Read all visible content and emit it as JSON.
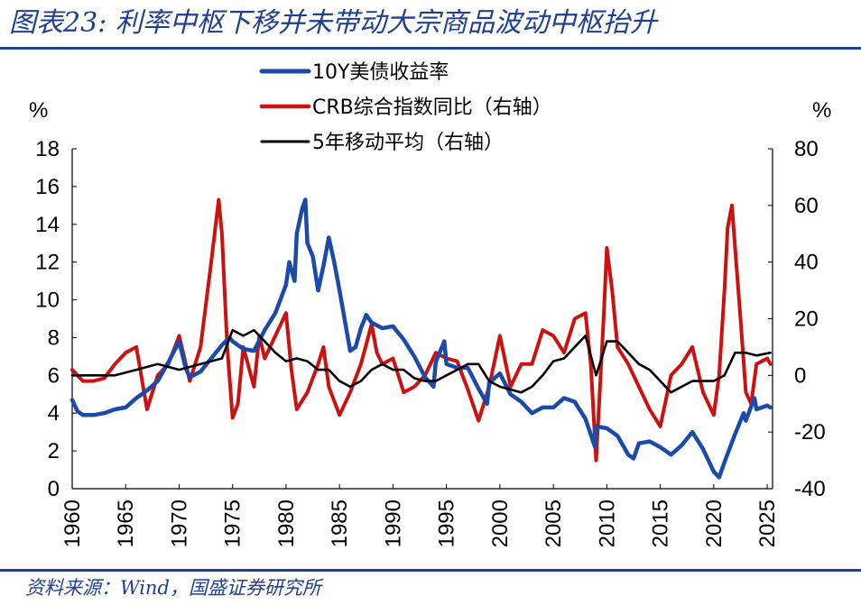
{
  "header": {
    "title": "图表23:  利率中枢下移并未带动大宗商品波动中枢抬升"
  },
  "footer": {
    "source": "资料来源：Wind，国盛证券研究所"
  },
  "colors": {
    "brand_blue": "#1f3f8f",
    "series_10y": "#1c4aa8",
    "series_crb": "#cc1111",
    "series_ma5": "#000000"
  },
  "chart_data": {
    "type": "line",
    "ylabel_left": "%",
    "ylabel_right": "%",
    "xlim": [
      1960,
      2025.5
    ],
    "ylim_left": [
      0,
      18
    ],
    "ylim_right": [
      -40,
      80
    ],
    "x_ticks": [
      "1960",
      "1965",
      "1970",
      "1975",
      "1980",
      "1985",
      "1990",
      "1995",
      "2000",
      "2005",
      "2010",
      "2015",
      "2020",
      "2025"
    ],
    "y_left_ticks": [
      "0",
      "2",
      "4",
      "6",
      "8",
      "10",
      "12",
      "14",
      "16",
      "18"
    ],
    "y_right_ticks": [
      "-40",
      "-20",
      "0",
      "20",
      "40",
      "60",
      "80"
    ],
    "legend_position": "top",
    "grid": false,
    "series": [
      {
        "name": "10Y美债收益率",
        "axis": "left",
        "x": [
          1960,
          1960.5,
          1961,
          1962,
          1963,
          1964,
          1965,
          1966,
          1967,
          1968,
          1969,
          1970,
          1970.6,
          1971,
          1972,
          1973,
          1974,
          1974.7,
          1975,
          1976,
          1977,
          1978,
          1979,
          1980,
          1980.3,
          1980.8,
          1981,
          1981.5,
          1981.8,
          1982,
          1982.5,
          1983,
          1983.5,
          1984,
          1984.5,
          1985,
          1986,
          1986.5,
          1987,
          1987.5,
          1988,
          1989,
          1990,
          1991,
          1992,
          1993,
          1993.8,
          1994,
          1994.8,
          1995,
          1996,
          1997,
          1998,
          1998.8,
          1999,
          2000,
          2001,
          2002,
          2003,
          2004,
          2005,
          2006,
          2007,
          2008,
          2008.9,
          2009,
          2010,
          2011,
          2012,
          2012.5,
          2013,
          2014,
          2015,
          2016,
          2017,
          2018,
          2019,
          2020,
          2020.5,
          2021,
          2022,
          2022.8,
          2023,
          2023.8,
          2024,
          2025,
          2025.3
        ],
        "values": [
          4.7,
          4.1,
          3.9,
          3.9,
          4.0,
          4.2,
          4.3,
          4.8,
          5.2,
          5.7,
          6.7,
          7.8,
          6.4,
          5.9,
          6.2,
          6.9,
          7.6,
          8.0,
          7.8,
          7.4,
          7.3,
          8.4,
          9.3,
          10.8,
          12.0,
          11.0,
          13.5,
          14.8,
          15.3,
          13.0,
          12.3,
          10.5,
          11.8,
          13.3,
          12.0,
          10.5,
          7.3,
          7.5,
          8.5,
          9.2,
          8.8,
          8.5,
          8.6,
          7.9,
          7.0,
          5.9,
          5.4,
          6.7,
          7.8,
          6.6,
          6.4,
          6.4,
          5.3,
          4.5,
          5.6,
          6.1,
          5.0,
          4.6,
          4.0,
          4.3,
          4.3,
          4.8,
          4.6,
          3.7,
          2.2,
          3.3,
          3.2,
          2.8,
          1.8,
          1.6,
          2.4,
          2.5,
          2.2,
          1.8,
          2.3,
          3.0,
          2.1,
          0.9,
          0.6,
          1.4,
          2.9,
          4.0,
          3.6,
          4.8,
          4.2,
          4.4,
          4.3
        ]
      },
      {
        "name": "CRB综合指数同比（右轴）",
        "axis": "right",
        "x": [
          1960,
          1961,
          1962,
          1963,
          1964,
          1965,
          1966,
          1967,
          1968,
          1969,
          1970,
          1971,
          1972,
          1973,
          1973.7,
          1974,
          1974.5,
          1975,
          1975.5,
          1976,
          1977,
          1977.5,
          1978,
          1979,
          1980,
          1980.5,
          1981,
          1982,
          1983,
          1983.5,
          1984,
          1985,
          1986,
          1987,
          1988,
          1988.5,
          1989,
          1990,
          1991,
          1992,
          1993,
          1994,
          1995,
          1996,
          1997,
          1998,
          1999,
          2000,
          2001,
          2002,
          2003,
          2004,
          2005,
          2006,
          2007,
          2008,
          2008.5,
          2009,
          2009.7,
          2010,
          2010.5,
          2011,
          2012,
          2013,
          2014,
          2015,
          2016,
          2017,
          2018,
          2019,
          2020,
          2020.5,
          2021,
          2021.3,
          2021.7,
          2022,
          2022.5,
          2023,
          2023.5,
          2024,
          2025,
          2025.3
        ],
        "values": [
          2,
          -2,
          -2,
          -1,
          4,
          8,
          10,
          -12,
          0,
          4,
          14,
          -2,
          10,
          40,
          62,
          50,
          10,
          -15,
          -10,
          10,
          -4,
          14,
          6,
          14,
          22,
          2,
          -12,
          -6,
          4,
          10,
          -4,
          -14,
          -6,
          4,
          18,
          8,
          4,
          6,
          -6,
          -4,
          0,
          8,
          6,
          5,
          -5,
          -16,
          -4,
          14,
          -4,
          4,
          4,
          16,
          14,
          8,
          20,
          22,
          4,
          -30,
          20,
          45,
          30,
          10,
          4,
          -4,
          -12,
          -18,
          0,
          4,
          10,
          -6,
          -14,
          0,
          30,
          52,
          60,
          45,
          20,
          -6,
          -10,
          4,
          6,
          4
        ]
      },
      {
        "name": "5年移动平均（右轴）",
        "axis": "right",
        "x": [
          1960,
          1962,
          1964,
          1966,
          1968,
          1970,
          1972,
          1974,
          1975,
          1976,
          1977,
          1978,
          1979,
          1980,
          1981,
          1982,
          1983,
          1984,
          1985,
          1986,
          1987,
          1988,
          1989,
          1990,
          1991,
          1992,
          1993,
          1994,
          1995,
          1996,
          1997,
          1998,
          1999,
          2000,
          2001,
          2002,
          2003,
          2004,
          2005,
          2006,
          2007,
          2008,
          2009,
          2010,
          2011,
          2012,
          2013,
          2014,
          2015,
          2016,
          2017,
          2018,
          2019,
          2020,
          2021,
          2022,
          2023,
          2024,
          2025.3
        ],
        "values": [
          0,
          0,
          0,
          2,
          4,
          2,
          4,
          6,
          16,
          14,
          16,
          12,
          8,
          5,
          6,
          5,
          2,
          2,
          -2,
          -4,
          -2,
          2,
          4,
          2,
          2,
          -1,
          -2,
          -2,
          0,
          2,
          4,
          4,
          -2,
          -4,
          -5,
          -6,
          -4,
          0,
          5,
          6,
          10,
          14,
          0,
          12,
          12,
          8,
          4,
          2,
          -2,
          -6,
          -4,
          -2,
          -2,
          -2,
          0,
          8,
          8,
          7,
          8
        ]
      }
    ]
  }
}
